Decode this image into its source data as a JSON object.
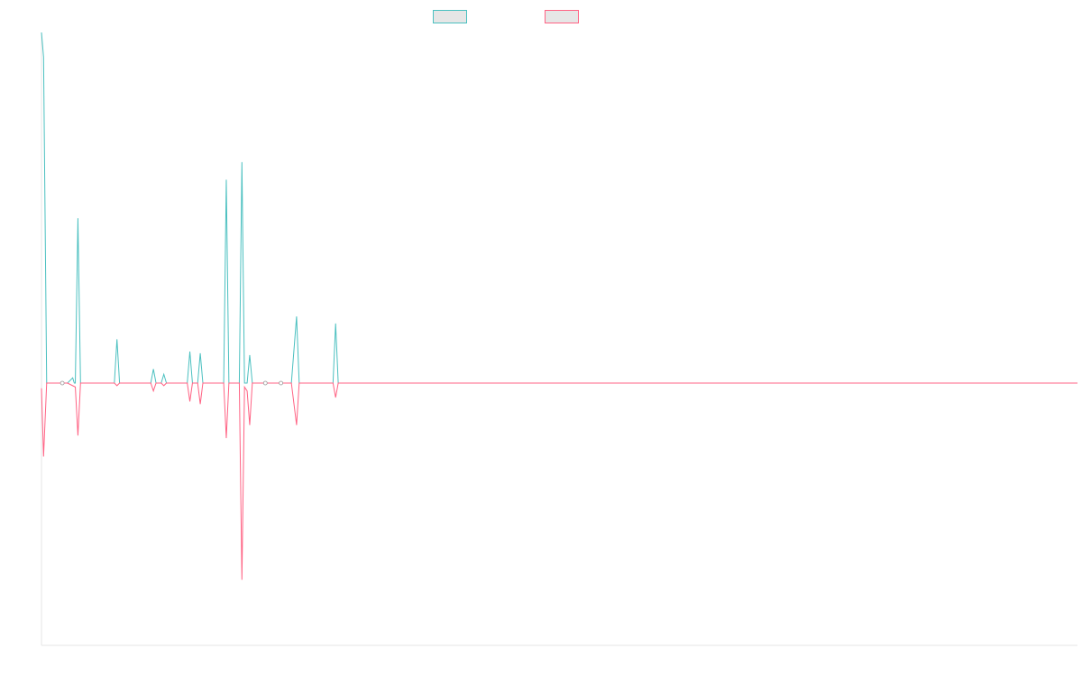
{
  "chart_data": {
    "type": "line",
    "title": "",
    "xlabel": "",
    "ylabel": "",
    "grid": false,
    "legend_position": "top-center",
    "ylim": [
      -100,
      100
    ],
    "x_count": 200,
    "series": [
      {
        "color": "#4bc0c0",
        "points": [
          [
            0,
            100
          ],
          [
            0.4,
            93
          ],
          [
            1,
            0
          ],
          [
            3,
            0
          ],
          [
            5,
            0
          ],
          [
            6,
            1.5
          ],
          [
            6.3,
            0
          ],
          [
            6.5,
            0
          ],
          [
            7,
            47
          ],
          [
            7.5,
            0
          ],
          [
            14,
            0
          ],
          [
            14.5,
            12.5
          ],
          [
            15,
            0
          ],
          [
            21,
            0
          ],
          [
            21.5,
            4
          ],
          [
            22,
            0
          ],
          [
            23,
            0
          ],
          [
            23.5,
            2.5
          ],
          [
            24,
            0
          ],
          [
            28,
            0
          ],
          [
            28.5,
            9
          ],
          [
            29,
            0
          ],
          [
            30,
            0
          ],
          [
            30.5,
            8.5
          ],
          [
            31,
            0
          ],
          [
            35,
            0
          ],
          [
            35.5,
            58
          ],
          [
            36,
            0
          ],
          [
            38,
            0
          ],
          [
            38.5,
            63
          ],
          [
            39,
            0
          ],
          [
            39.5,
            0
          ],
          [
            40,
            8
          ],
          [
            40.5,
            0
          ],
          [
            42,
            0
          ],
          [
            45,
            0
          ],
          [
            48,
            0
          ],
          [
            49,
            19
          ],
          [
            49.5,
            0
          ],
          [
            56,
            0
          ],
          [
            56.5,
            17
          ],
          [
            57,
            0
          ],
          [
            199,
            0
          ]
        ]
      },
      {
        "color": "#ff6384",
        "points": [
          [
            0,
            -2
          ],
          [
            0.4,
            -28
          ],
          [
            1,
            0
          ],
          [
            3,
            0
          ],
          [
            5,
            0
          ],
          [
            6.5,
            -1.5
          ],
          [
            7,
            -20
          ],
          [
            7.5,
            0
          ],
          [
            14,
            0
          ],
          [
            14.5,
            -1
          ],
          [
            15,
            0
          ],
          [
            21,
            0
          ],
          [
            21.5,
            -3
          ],
          [
            22,
            0
          ],
          [
            23,
            0
          ],
          [
            23.5,
            -1
          ],
          [
            24,
            0
          ],
          [
            28,
            0
          ],
          [
            28.5,
            -7
          ],
          [
            29,
            0
          ],
          [
            30,
            0
          ],
          [
            30.5,
            -8
          ],
          [
            31,
            0
          ],
          [
            35,
            0
          ],
          [
            35.5,
            -21
          ],
          [
            36,
            0
          ],
          [
            38,
            0
          ],
          [
            38.5,
            -75
          ],
          [
            39,
            -1.5
          ],
          [
            39.5,
            -3
          ],
          [
            40,
            -16
          ],
          [
            40.5,
            0
          ],
          [
            42,
            0
          ],
          [
            45,
            0
          ],
          [
            48,
            0
          ],
          [
            49,
            -16
          ],
          [
            49.5,
            0
          ],
          [
            56,
            0
          ],
          [
            56.5,
            -5.5
          ],
          [
            57,
            0
          ],
          [
            199,
            0
          ]
        ]
      }
    ],
    "zero_markers": [
      4,
      43,
      46
    ]
  }
}
